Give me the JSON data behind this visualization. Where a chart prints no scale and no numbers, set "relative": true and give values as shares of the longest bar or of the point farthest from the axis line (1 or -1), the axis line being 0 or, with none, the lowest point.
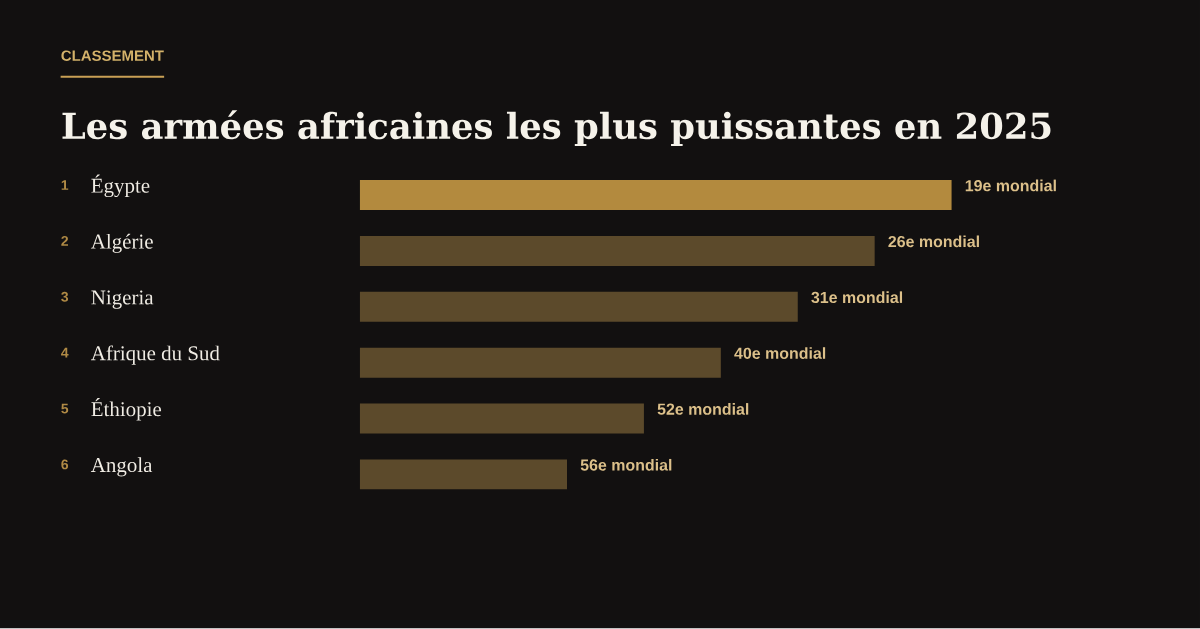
{
  "chart_data": {
    "type": "bar",
    "orientation": "horizontal",
    "relative": true,
    "subtitle": "CLASSEMENT",
    "title": "Les armées africaines les plus puissantes en 2025",
    "categories": [
      "Égypte",
      "Algérie",
      "Nigeria",
      "Afrique du Sud",
      "Éthiopie",
      "Angola"
    ],
    "values": [
      1,
      0.87,
      0.74,
      0.61,
      0.48,
      0.35
    ],
    "colors": [
      "#b38a3e",
      "#5c4a2b",
      "#5c4a2b",
      "#5c4a2b",
      "#5c4a2b",
      "#5c4a2b"
    ],
    "annotations": [
      "1",
      "2",
      "3",
      "4",
      "5",
      "6",
      {
        "text": "19e mondial",
        "x": 1,
        "y": "Égypte"
      },
      {
        "text": "26e mondial",
        "x": 0.87,
        "y": "Algérie"
      },
      {
        "text": "31e mondial",
        "x": 0.74,
        "y": "Nigeria"
      },
      {
        "text": "40e mondial",
        "x": 0.61,
        "y": "Afrique du Sud"
      },
      {
        "text": "52e mondial",
        "x": 0.48,
        "y": "Éthiopie"
      },
      {
        "text": "56e mondial",
        "x": 0.35,
        "y": "Angola"
      }
    ]
  }
}
